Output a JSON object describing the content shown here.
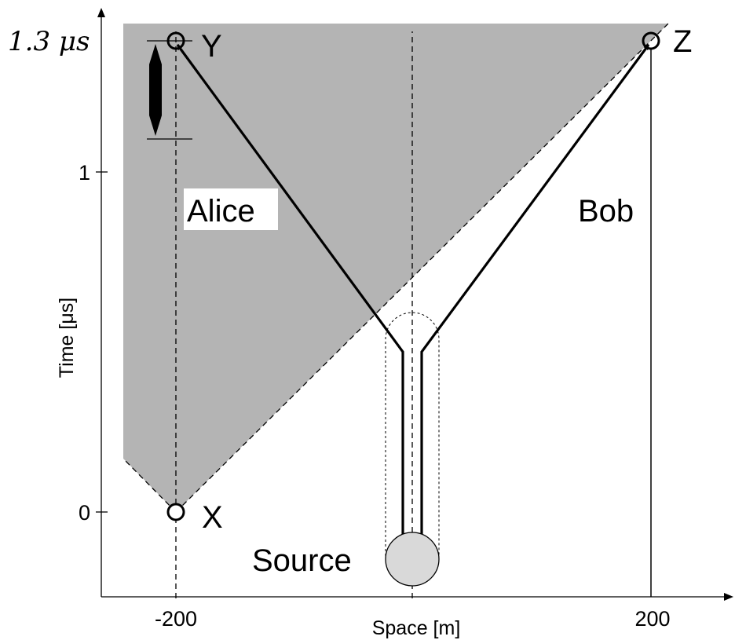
{
  "axes": {
    "x_label": "Space [m]",
    "y_label": "Time [μs]",
    "x_ticks": [
      "-200",
      "200"
    ],
    "y_ticks": [
      "0",
      "1"
    ],
    "y_top_label": "1.3 μs"
  },
  "events": {
    "x_label": "X",
    "y_label": "Y",
    "z_label": "Z"
  },
  "parties": {
    "alice": "Alice",
    "bob": "Bob",
    "source": "Source"
  },
  "colors": {
    "light_cone_fill": "#b4b4b4",
    "source_fill": "#d9d9d9",
    "line": "#000000"
  }
}
